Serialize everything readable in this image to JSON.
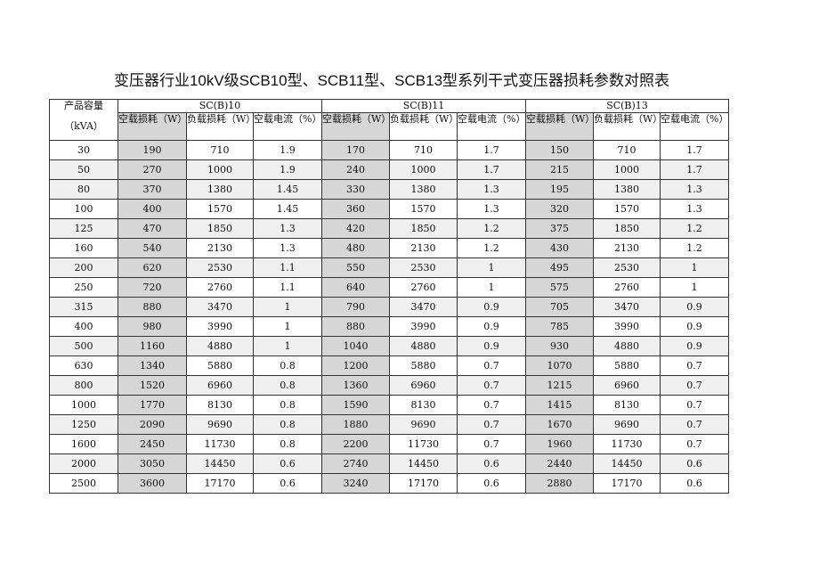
{
  "title": "变压器行业10kV级SCB10型、SCB11型、SCB13型系列干式变压器损耗参数对照表",
  "header": {
    "capacity_label": "产品容量",
    "capacity_unit": "（kVA）",
    "groups": [
      "SC(B)10",
      "SC(B)11",
      "SC(B)13"
    ],
    "subcolumns": [
      "空载损耗（W）",
      "负载损耗（W）",
      "空载电流（%）"
    ]
  },
  "rows": [
    {
      "capacity": "30",
      "v": [
        "190",
        "710",
        "1.9",
        "170",
        "710",
        "1.7",
        "150",
        "710",
        "1.7"
      ]
    },
    {
      "capacity": "50",
      "v": [
        "270",
        "1000",
        "1.9",
        "240",
        "1000",
        "1.7",
        "215",
        "1000",
        "1.7"
      ]
    },
    {
      "capacity": "80",
      "v": [
        "370",
        "1380",
        "1.45",
        "330",
        "1380",
        "1.3",
        "195",
        "1380",
        "1.3"
      ]
    },
    {
      "capacity": "100",
      "v": [
        "400",
        "1570",
        "1.45",
        "360",
        "1570",
        "1.3",
        "320",
        "1570",
        "1.3"
      ]
    },
    {
      "capacity": "125",
      "v": [
        "470",
        "1850",
        "1.3",
        "420",
        "1850",
        "1.2",
        "375",
        "1850",
        "1.2"
      ]
    },
    {
      "capacity": "160",
      "v": [
        "540",
        "2130",
        "1.3",
        "480",
        "2130",
        "1.2",
        "430",
        "2130",
        "1.2"
      ]
    },
    {
      "capacity": "200",
      "v": [
        "620",
        "2530",
        "1.1",
        "550",
        "2530",
        "1",
        "495",
        "2530",
        "1"
      ]
    },
    {
      "capacity": "250",
      "v": [
        "720",
        "2760",
        "1.1",
        "640",
        "2760",
        "1",
        "575",
        "2760",
        "1"
      ]
    },
    {
      "capacity": "315",
      "v": [
        "880",
        "3470",
        "1",
        "790",
        "3470",
        "0.9",
        "705",
        "3470",
        "0.9"
      ]
    },
    {
      "capacity": "400",
      "v": [
        "980",
        "3990",
        "1",
        "880",
        "3990",
        "0.9",
        "785",
        "3990",
        "0.9"
      ]
    },
    {
      "capacity": "500",
      "v": [
        "1160",
        "4880",
        "1",
        "1040",
        "4880",
        "0.9",
        "930",
        "4880",
        "0.9"
      ]
    },
    {
      "capacity": "630",
      "v": [
        "1340",
        "5880",
        "0.8",
        "1200",
        "5880",
        "0.7",
        "1070",
        "5880",
        "0.7"
      ]
    },
    {
      "capacity": "800",
      "v": [
        "1520",
        "6960",
        "0.8",
        "1360",
        "6960",
        "0.7",
        "1215",
        "6960",
        "0.7"
      ]
    },
    {
      "capacity": "1000",
      "v": [
        "1770",
        "8130",
        "0.8",
        "1590",
        "8130",
        "0.7",
        "1415",
        "8130",
        "0.7"
      ]
    },
    {
      "capacity": "1250",
      "v": [
        "2090",
        "9690",
        "0.8",
        "1880",
        "9690",
        "0.7",
        "1670",
        "9690",
        "0.7"
      ]
    },
    {
      "capacity": "1600",
      "v": [
        "2450",
        "11730",
        "0.8",
        "2200",
        "11730",
        "0.7",
        "1960",
        "11730",
        "0.7"
      ]
    },
    {
      "capacity": "2000",
      "v": [
        "3050",
        "14450",
        "0.6",
        "2740",
        "14450",
        "0.6",
        "2440",
        "14450",
        "0.6"
      ]
    },
    {
      "capacity": "2500",
      "v": [
        "3600",
        "17170",
        "0.6",
        "3240",
        "17170",
        "0.6",
        "2880",
        "17170",
        "0.6"
      ]
    }
  ]
}
